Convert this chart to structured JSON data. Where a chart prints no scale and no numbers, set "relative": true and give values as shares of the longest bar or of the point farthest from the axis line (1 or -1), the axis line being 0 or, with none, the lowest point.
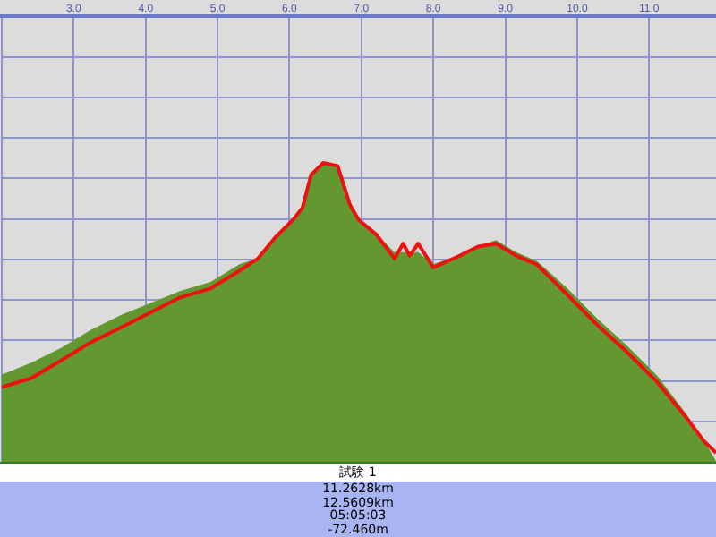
{
  "chart_data": {
    "type": "area",
    "relative": true,
    "x": [
      2.0,
      2.41,
      2.83,
      3.24,
      3.66,
      4.07,
      4.48,
      4.9,
      5.31,
      5.56,
      5.8,
      6.05,
      6.18,
      6.3,
      6.47,
      6.67,
      6.84,
      6.96,
      7.21,
      7.46,
      7.58,
      7.67,
      7.79,
      8.0,
      8.37,
      8.62,
      8.87,
      9.15,
      9.44,
      9.86,
      10.27,
      10.68,
      11.1,
      11.51,
      11.76,
      11.93
    ],
    "series": [
      {
        "color": "#62982f",
        "values": [
          0.29,
          0.33,
          0.38,
          0.44,
          0.49,
          0.53,
          0.57,
          0.6,
          0.66,
          0.68,
          0.75,
          0.81,
          0.85,
          0.96,
          1.0,
          0.99,
          0.86,
          0.81,
          0.76,
          0.7,
          0.7,
          0.7,
          0.7,
          0.66,
          0.69,
          0.72,
          0.74,
          0.7,
          0.67,
          0.58,
          0.48,
          0.39,
          0.29,
          0.16,
          0.07,
          0.0
        ]
      },
      {
        "type": "line",
        "color": "#ee1111",
        "values": [
          0.25,
          0.28,
          0.34,
          0.4,
          0.45,
          0.5,
          0.55,
          0.58,
          0.64,
          0.68,
          0.75,
          0.81,
          0.85,
          0.96,
          1.0,
          0.99,
          0.86,
          0.81,
          0.76,
          0.68,
          0.73,
          0.69,
          0.73,
          0.65,
          0.69,
          0.72,
          0.73,
          0.69,
          0.66,
          0.56,
          0.46,
          0.37,
          0.27,
          0.15,
          0.07,
          0.03
        ]
      }
    ],
    "xlim": [
      2.0,
      11.93
    ],
    "xticks": [
      {
        "value": 2,
        "label": null
      },
      {
        "value": 3,
        "label": "3.0"
      },
      {
        "value": 4,
        "label": "4.0"
      },
      {
        "value": 5,
        "label": "5.0"
      },
      {
        "value": 6,
        "label": "6.0"
      },
      {
        "value": 7,
        "label": "7.0"
      },
      {
        "value": 8,
        "label": "8.0"
      },
      {
        "value": 9,
        "label": "9.0"
      },
      {
        "value": 10,
        "label": "10.0"
      },
      {
        "value": 11,
        "label": "11.0"
      }
    ],
    "grid": true,
    "legend": false,
    "marker": "none",
    "annotations": [
      "試験 1",
      "11.2628km",
      "12.5609km",
      "05:05:03",
      "-72.460m"
    ]
  }
}
